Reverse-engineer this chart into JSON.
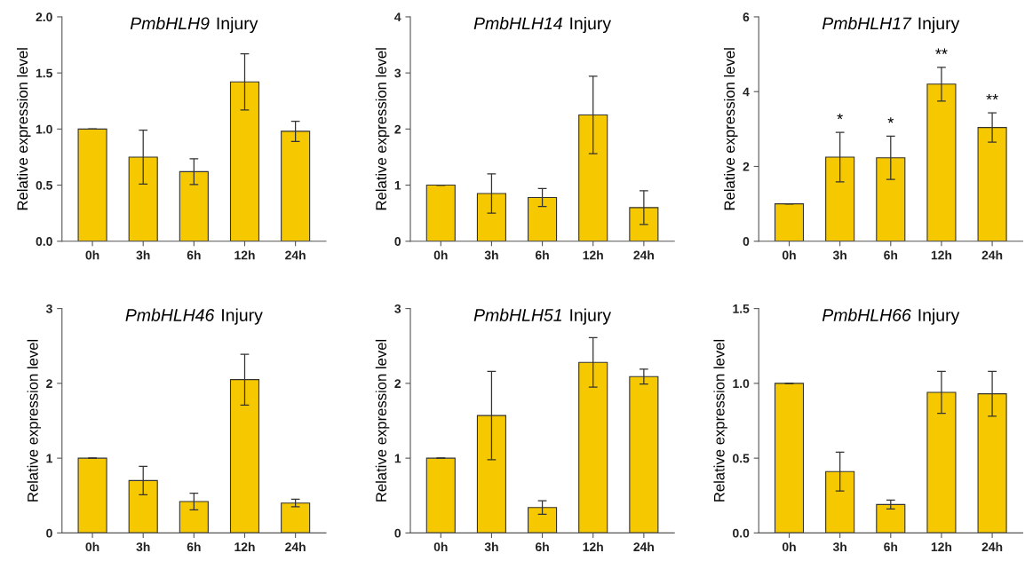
{
  "chart_data": [
    {
      "type": "bar",
      "title": "PmbHLH9 Injury",
      "ylabel": "Relative expression level",
      "categories": [
        "0h",
        "3h",
        "6h",
        "12h",
        "24h"
      ],
      "values": [
        1.0,
        0.75,
        0.62,
        1.42,
        0.98
      ],
      "errors": [
        null,
        0.24,
        0.115,
        0.25,
        0.09
      ],
      "color": "#f5c800",
      "ylim": [
        0,
        2.0
      ],
      "yticks": [
        {
          "value": 0,
          "label": "0.0"
        },
        0.5,
        {
          "value": 1,
          "label": "1.0"
        },
        1.5,
        {
          "value": 2,
          "label": "2.0"
        }
      ]
    },
    {
      "type": "bar",
      "title": "PmbHLH14 Injury",
      "ylabel": "Relative expression level",
      "categories": [
        "0h",
        "3h",
        "6h",
        "12h",
        "24h"
      ],
      "values": [
        1.0,
        0.85,
        0.78,
        2.25,
        0.6
      ],
      "errors": [
        null,
        0.35,
        0.16,
        0.69,
        0.3
      ],
      "color": "#f5c800",
      "ylim": [
        0,
        4
      ],
      "yticks": [
        0,
        1,
        2,
        3,
        4
      ]
    },
    {
      "type": "bar",
      "title": "PmbHLH17 Injury",
      "ylabel": "Relative expression level",
      "categories": [
        "0h",
        "3h",
        "6h",
        "12h",
        "24h"
      ],
      "values": [
        1.0,
        2.25,
        2.23,
        4.2,
        3.04
      ],
      "errors": [
        null,
        0.66,
        0.58,
        0.45,
        0.39
      ],
      "color": "#f5c800",
      "ylim": [
        0,
        6
      ],
      "yticks": [
        0,
        2,
        4,
        6
      ],
      "value_labels": [
        null,
        "*",
        "*",
        "**",
        "**"
      ]
    },
    {
      "type": "bar",
      "title": "PmbHLH46 Injury",
      "ylabel": "Relative expression level",
      "categories": [
        "0h",
        "3h",
        "6h",
        "12h",
        "24h"
      ],
      "values": [
        1.0,
        0.7,
        0.42,
        2.05,
        0.4
      ],
      "errors": [
        null,
        0.19,
        0.11,
        0.34,
        0.05
      ],
      "color": "#f5c800",
      "ylim": [
        0,
        3
      ],
      "yticks": [
        0,
        1,
        2,
        3
      ]
    },
    {
      "type": "bar",
      "title": "PmbHLH51 Injury",
      "ylabel": "Relative expression level",
      "categories": [
        "0h",
        "3h",
        "6h",
        "12h",
        "24h"
      ],
      "values": [
        1.0,
        1.57,
        0.34,
        2.28,
        2.09
      ],
      "errors": [
        null,
        0.59,
        0.09,
        0.33,
        0.1
      ],
      "color": "#f5c800",
      "ylim": [
        0,
        3
      ],
      "yticks": [
        0,
        1,
        2,
        3
      ]
    },
    {
      "type": "bar",
      "title": "PmbHLH66 Injury",
      "ylabel": "Relative expression level",
      "categories": [
        "0h",
        "3h",
        "6h",
        "12h",
        "24h"
      ],
      "values": [
        1.0,
        0.41,
        0.19,
        0.94,
        0.93
      ],
      "errors": [
        null,
        0.13,
        0.03,
        0.14,
        0.15
      ],
      "color": "#f5c800",
      "ylim": [
        0,
        1.5
      ],
      "yticks": [
        {
          "value": 0,
          "label": "0.0"
        },
        0.5,
        {
          "value": 1,
          "label": "1.0"
        },
        1.5
      ]
    }
  ]
}
